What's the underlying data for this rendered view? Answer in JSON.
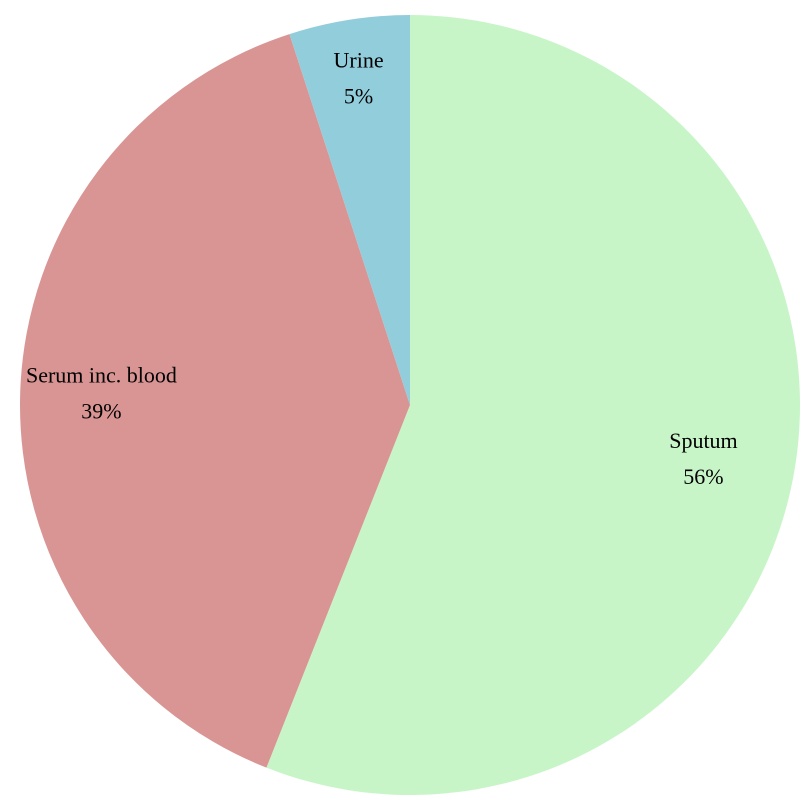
{
  "chart_data": {
    "type": "pie",
    "categories": [
      "Sputum",
      "Serum inc. blood",
      "Urine"
    ],
    "values": [
      56,
      39,
      5
    ],
    "value_labels": [
      "56%",
      "39%",
      "5%"
    ],
    "colors": [
      "#c8f5c8",
      "#d99594",
      "#92cddc"
    ]
  }
}
